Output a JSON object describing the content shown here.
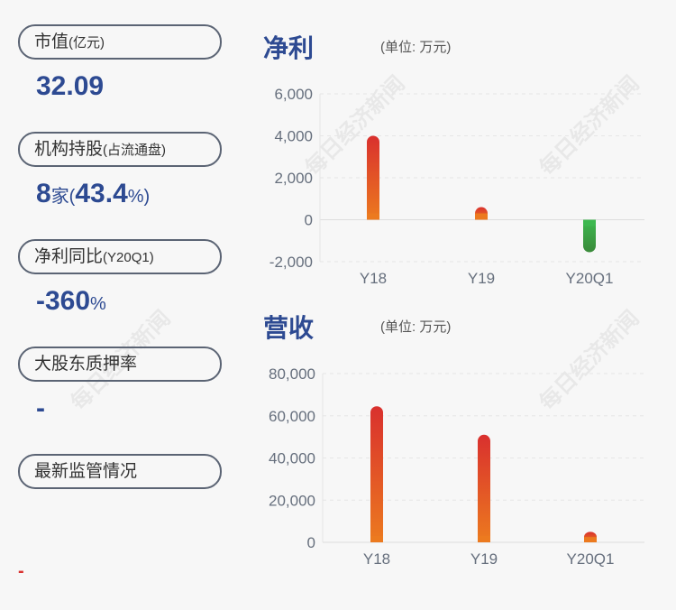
{
  "left": {
    "items": [
      {
        "label": "市值",
        "sub": "(亿元)",
        "value": "32.09",
        "value_suffix": ""
      },
      {
        "label": "机构持股",
        "sub": "(占流通盘)",
        "value": "8",
        "value_mid": "家(",
        "value2": "43.4",
        "value_suffix": "%)"
      },
      {
        "label": "净利同比",
        "sub": "(Y20Q1)",
        "value": "-360",
        "value_suffix": "%"
      },
      {
        "label": "大股东质押率",
        "sub": "",
        "value": "-",
        "value_suffix": ""
      },
      {
        "label": "最新监管情况",
        "sub": "",
        "value": "",
        "value_suffix": ""
      }
    ],
    "footer_dash": "-"
  },
  "watermark": "每日经济新闻",
  "chart_data": [
    {
      "type": "bar",
      "title": "净利",
      "unit": "(单位: 万元)",
      "categories": [
        "Y18",
        "Y19",
        "Y20Q1"
      ],
      "values": [
        4000,
        600,
        -1550
      ],
      "ylim": [
        -2000,
        6000
      ],
      "yticks": [
        "6,000",
        "4,000",
        "2,000",
        "0",
        "-2,000"
      ],
      "tickvals": [
        6000,
        4000,
        2000,
        0,
        -2000
      ],
      "grid": true,
      "colors": {
        "positive": [
          "#d9302e",
          "#ec7a1f"
        ],
        "negative": [
          "#3db84f",
          "#3a8a3a"
        ]
      }
    },
    {
      "type": "bar",
      "title": "营收",
      "unit": "(单位: 万元)",
      "categories": [
        "Y18",
        "Y19",
        "Y20Q1"
      ],
      "values": [
        64500,
        51000,
        5000
      ],
      "ylim": [
        0,
        80000
      ],
      "yticks": [
        "80,000",
        "60,000",
        "40,000",
        "20,000",
        "0"
      ],
      "tickvals": [
        80000,
        60000,
        40000,
        20000,
        0
      ],
      "grid": true,
      "colors": {
        "positive": [
          "#d9302e",
          "#ec7a1f"
        ]
      }
    }
  ]
}
